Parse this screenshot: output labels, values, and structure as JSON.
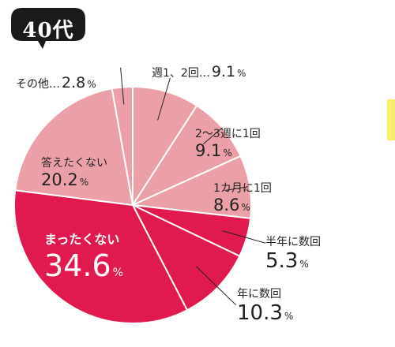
{
  "badge": {
    "label": "40代",
    "color": "#1a1a1a"
  },
  "chart_data": {
    "type": "pie",
    "start": "top",
    "direction": "clockwise",
    "unit": "%",
    "slices": [
      {
        "name": "週1、2回",
        "value": 9.1,
        "color": "#eba0a7"
      },
      {
        "name": "2〜3週に1回",
        "value": 9.1,
        "color": "#eba0a7"
      },
      {
        "name": "1カ月に1回",
        "value": 8.6,
        "color": "#eba0a7"
      },
      {
        "name": "半年に数回",
        "value": 5.3,
        "color": "#e0194e"
      },
      {
        "name": "年に数回",
        "value": 10.3,
        "color": "#e0194e"
      },
      {
        "name": "まったくない",
        "value": 34.6,
        "color": "#e0194e"
      },
      {
        "name": "答えたくない",
        "value": 20.2,
        "color": "#eba0a7"
      },
      {
        "name": "その他",
        "value": 2.8,
        "color": "#eba0a7"
      }
    ]
  },
  "labels": {
    "s0": {
      "name": "週1、2回…",
      "value": "9.1",
      "unit": "%"
    },
    "s1": {
      "name": "2〜3週に1回",
      "value": "9.1",
      "unit": "%"
    },
    "s2": {
      "name": "1カ月に1回",
      "value": "8.6",
      "unit": "%"
    },
    "s3": {
      "name": "半年に数回",
      "value": "5.3",
      "unit": "%"
    },
    "s4": {
      "name": "年に数回",
      "value": "10.3",
      "unit": "%"
    },
    "s5": {
      "name": "まったくない",
      "value": "34.6",
      "unit": "%"
    },
    "s6": {
      "name": "答えたくない",
      "value": "20.2",
      "unit": "%"
    },
    "s7": {
      "name": "その他…",
      "value": "2.8",
      "unit": "%"
    }
  }
}
